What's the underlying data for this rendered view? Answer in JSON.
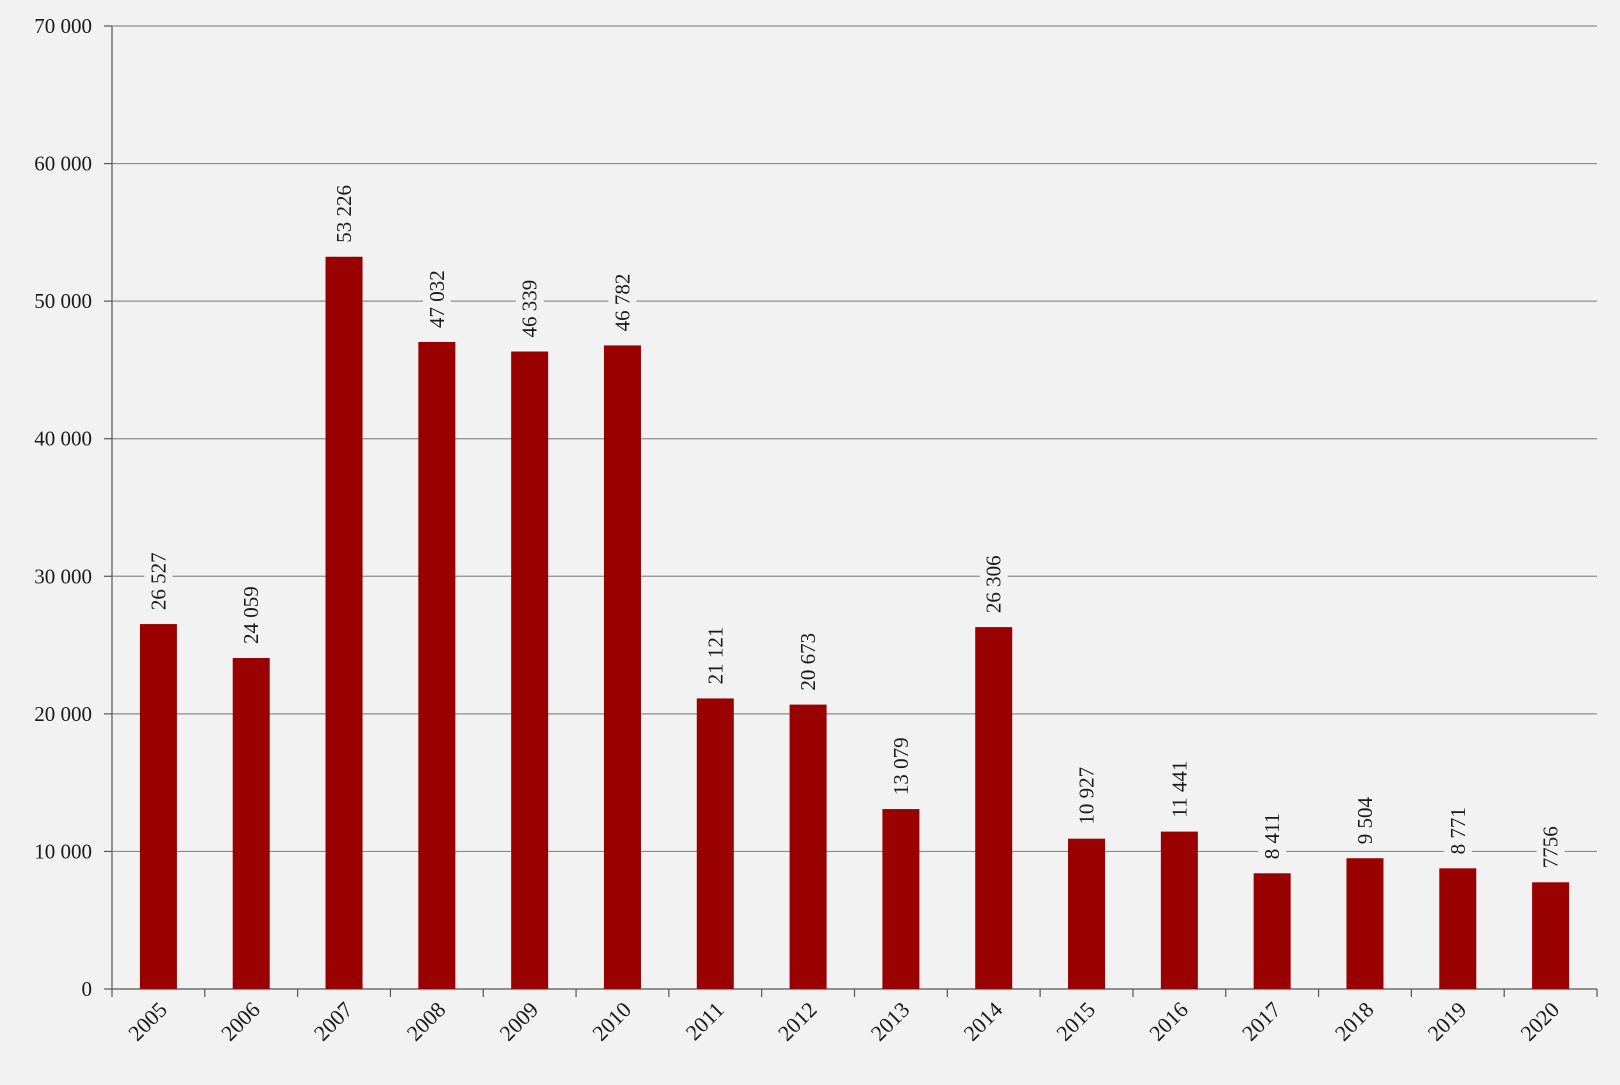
{
  "chart_data": {
    "type": "bar",
    "title": "",
    "xlabel": "",
    "ylabel": "",
    "categories": [
      "2005",
      "2006",
      "2007",
      "2008",
      "2009",
      "2010",
      "2011",
      "2012",
      "2013",
      "2014",
      "2015",
      "2016",
      "2017",
      "2018",
      "2019",
      "2020"
    ],
    "values": [
      26527,
      24059,
      53226,
      47032,
      46339,
      46782,
      21121,
      20673,
      13079,
      26306,
      10927,
      11441,
      8411,
      9504,
      8771,
      7756
    ],
    "value_labels": [
      "26 527",
      "24 059",
      "53 226",
      "47 032",
      "46 339",
      "46 782",
      "21 121",
      "20 673",
      "13 079",
      "26 306",
      "10 927",
      "11 441",
      "8 411",
      "9 504",
      "8 771",
      "7756"
    ],
    "ylim": [
      0,
      70000
    ],
    "yticks": [
      0,
      10000,
      20000,
      30000,
      40000,
      50000,
      60000,
      70000
    ],
    "ytick_labels": [
      "0",
      "10 000",
      "20 000",
      "30 000",
      "40 000",
      "50 000",
      "60 000",
      "70 000"
    ],
    "grid": true,
    "legend": "none",
    "colors": {
      "bar": "#990000",
      "grid": "#8c8c8c",
      "background": "#f2f2f2"
    }
  }
}
